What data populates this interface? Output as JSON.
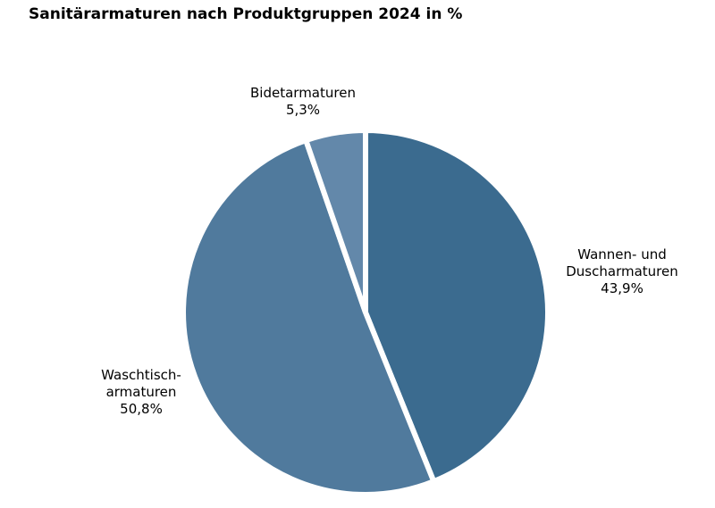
{
  "chart_data": {
    "type": "pie",
    "title": "Sanitärarmaturen nach Produktgruppen 2024 in %",
    "slices": [
      {
        "label_lines": [
          "Wannen- und",
          "Duscharmaturen"
        ],
        "value": 43.9,
        "value_label": "43,9%",
        "color": "#3b6b8f"
      },
      {
        "label_lines": [
          "Waschtisch-",
          "armaturen"
        ],
        "value": 50.8,
        "value_label": "50,8%",
        "color": "#507a9d"
      },
      {
        "label_lines": [
          "Bidetarmaturen"
        ],
        "value": 5.3,
        "value_label": "5,3%",
        "color": "#6388aa"
      }
    ],
    "start_angle_deg": 0,
    "direction": "clockwise",
    "separator_color": "#ffffff"
  }
}
